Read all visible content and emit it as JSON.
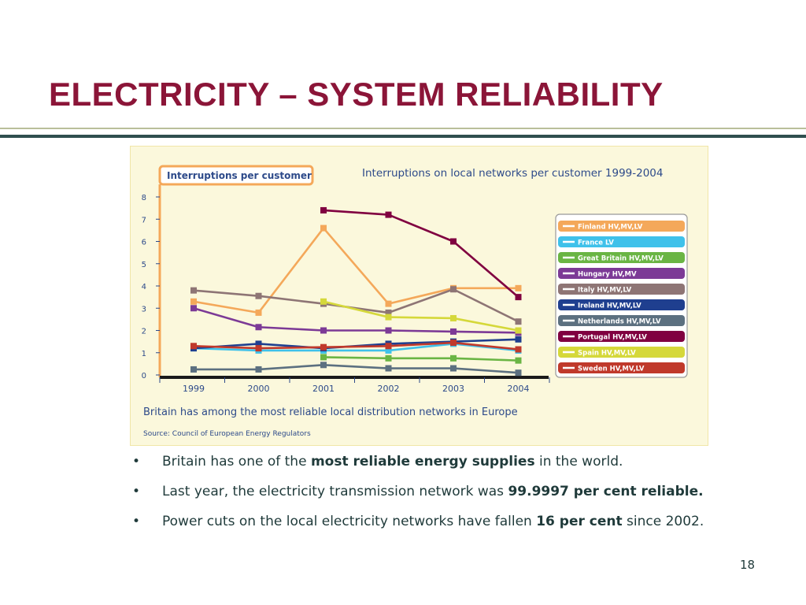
{
  "slide": {
    "title": "ELECTRICITY – SYSTEM RELIABILITY",
    "page_number": "18",
    "bullets": [
      {
        "pre": "Britain has one of the ",
        "bold": "most reliable energy supplies",
        "post": " in the world."
      },
      {
        "pre": "Last year, the electricity transmission network was ",
        "bold": "99.9997 per cent reliable.",
        "post": ""
      },
      {
        "pre": "Power cuts on the local electricity networks have fallen ",
        "bold": "16 per cent",
        "post": " since 2002."
      }
    ]
  },
  "chart_data": {
    "type": "line",
    "title": "Interruptions on local networks per customer 1999-2004",
    "ylabel": "Interruptions per customer",
    "caption": "Britain has among the most reliable local distribution networks in Europe",
    "source": "Source: Council of European Energy Regulators",
    "x": [
      "1999",
      "2000",
      "2001",
      "2002",
      "2003",
      "2004"
    ],
    "yticks": [
      0,
      1,
      2,
      3,
      4,
      5,
      6,
      7,
      8
    ],
    "ylim": [
      0,
      8
    ],
    "legend_position": "right",
    "series": [
      {
        "name": "Finland HV,MV,LV",
        "color": "#f4a85a",
        "values": [
          3.3,
          2.8,
          6.6,
          3.2,
          3.9,
          3.9
        ]
      },
      {
        "name": "France LV",
        "color": "#3fc1ea",
        "values": [
          1.2,
          1.1,
          1.1,
          1.1,
          1.4,
          1.1
        ]
      },
      {
        "name": "Great Britain HV,MV,LV",
        "color": "#6ab544",
        "values": [
          null,
          null,
          0.8,
          0.75,
          0.75,
          0.65
        ]
      },
      {
        "name": "Hungary HV,MV",
        "color": "#7c3a96",
        "values": [
          3.0,
          2.15,
          2.0,
          2.0,
          1.95,
          1.9
        ]
      },
      {
        "name": "Italy HV,MV,LV",
        "color": "#8e7575",
        "values": [
          3.8,
          3.55,
          3.2,
          2.8,
          3.85,
          2.4
        ]
      },
      {
        "name": "Ireland HV,MV,LV",
        "color": "#1f3f8f",
        "values": [
          1.2,
          1.4,
          1.2,
          1.4,
          1.5,
          1.6
        ]
      },
      {
        "name": "Netherlands HV,MV,LV",
        "color": "#5c7080",
        "values": [
          0.25,
          0.25,
          0.45,
          0.3,
          0.3,
          0.1
        ]
      },
      {
        "name": "Portugal HV,MV,LV",
        "color": "#800040",
        "values": [
          null,
          null,
          7.4,
          7.2,
          6.0,
          3.5
        ]
      },
      {
        "name": "Spain HV,MV,LV",
        "color": "#d5d83a",
        "values": [
          null,
          null,
          3.3,
          2.6,
          2.55,
          2.0
        ]
      },
      {
        "name": "Sweden HV,MV,LV",
        "color": "#c0392b",
        "values": [
          1.3,
          1.2,
          1.25,
          1.3,
          1.45,
          1.15
        ]
      }
    ]
  }
}
